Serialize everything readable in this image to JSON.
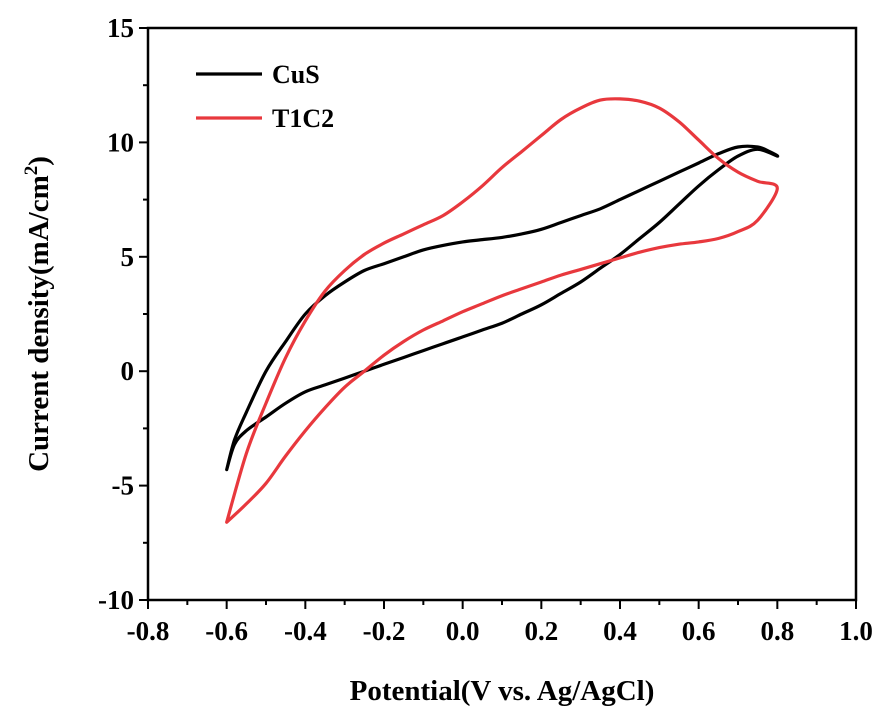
{
  "chart_data": {
    "type": "line",
    "xlabel": "Potential(V vs. Ag/AgCl)",
    "ylabel_main": "Current density(mA/cm",
    "ylabel_sup": "2",
    "ylabel_close": ")",
    "xlim": [
      -0.8,
      1.0
    ],
    "ylim": [
      -10,
      15
    ],
    "xticks": [
      -0.8,
      -0.6,
      -0.4,
      -0.2,
      0.0,
      0.2,
      0.4,
      0.6,
      0.8,
      1.0
    ],
    "xtick_labels": [
      "-0.8",
      "-0.6",
      "-0.4",
      "-0.2",
      "0.0",
      "0.2",
      "0.4",
      "0.6",
      "0.8",
      "1.0"
    ],
    "yticks": [
      -10,
      -5,
      0,
      5,
      10,
      15
    ],
    "ytick_labels": [
      "-10",
      "-5",
      "0",
      "5",
      "10",
      "15"
    ],
    "grid": false,
    "legend_position": "top-left",
    "series": [
      {
        "name": "CuS",
        "color": "#000000",
        "x": [
          -0.6,
          -0.58,
          -0.55,
          -0.5,
          -0.45,
          -0.4,
          -0.35,
          -0.3,
          -0.25,
          -0.2,
          -0.15,
          -0.1,
          -0.05,
          0.0,
          0.05,
          0.1,
          0.15,
          0.2,
          0.25,
          0.3,
          0.35,
          0.4,
          0.45,
          0.5,
          0.55,
          0.6,
          0.65,
          0.7,
          0.75,
          0.8,
          0.78,
          0.75,
          0.7,
          0.65,
          0.6,
          0.55,
          0.5,
          0.45,
          0.4,
          0.35,
          0.3,
          0.25,
          0.2,
          0.15,
          0.1,
          0.05,
          0.0,
          -0.05,
          -0.1,
          -0.15,
          -0.2,
          -0.25,
          -0.3,
          -0.35,
          -0.4,
          -0.45,
          -0.5,
          -0.55,
          -0.58,
          -0.6
        ],
        "y": [
          -4.3,
          -3.2,
          -2.6,
          -2.0,
          -1.4,
          -0.9,
          -0.6,
          -0.3,
          0.0,
          0.3,
          0.6,
          0.9,
          1.2,
          1.5,
          1.8,
          2.1,
          2.5,
          2.9,
          3.4,
          3.9,
          4.5,
          5.1,
          5.8,
          6.5,
          7.3,
          8.1,
          8.8,
          9.4,
          9.7,
          9.4,
          9.6,
          9.8,
          9.8,
          9.5,
          9.1,
          8.7,
          8.3,
          7.9,
          7.5,
          7.1,
          6.8,
          6.5,
          6.2,
          6.0,
          5.85,
          5.75,
          5.65,
          5.5,
          5.3,
          5.0,
          4.7,
          4.4,
          3.9,
          3.3,
          2.5,
          1.3,
          0.0,
          -1.8,
          -3.0,
          -4.3
        ]
      },
      {
        "name": "T1C2",
        "color": "#e8383d",
        "x": [
          -0.6,
          -0.55,
          -0.5,
          -0.45,
          -0.4,
          -0.35,
          -0.3,
          -0.25,
          -0.2,
          -0.15,
          -0.1,
          -0.05,
          0.0,
          0.05,
          0.1,
          0.15,
          0.2,
          0.25,
          0.3,
          0.35,
          0.4,
          0.45,
          0.5,
          0.55,
          0.6,
          0.65,
          0.7,
          0.75,
          0.8,
          0.75,
          0.7,
          0.65,
          0.6,
          0.55,
          0.5,
          0.45,
          0.4,
          0.35,
          0.3,
          0.25,
          0.2,
          0.15,
          0.1,
          0.05,
          0.0,
          -0.05,
          -0.1,
          -0.15,
          -0.2,
          -0.25,
          -0.3,
          -0.35,
          -0.4,
          -0.45,
          -0.5,
          -0.55,
          -0.6
        ],
        "y": [
          -6.6,
          -5.8,
          -4.9,
          -3.7,
          -2.6,
          -1.6,
          -0.7,
          0.0,
          0.7,
          1.3,
          1.8,
          2.2,
          2.6,
          2.95,
          3.3,
          3.6,
          3.9,
          4.2,
          4.45,
          4.7,
          4.95,
          5.2,
          5.4,
          5.55,
          5.65,
          5.8,
          6.1,
          6.6,
          8.0,
          8.3,
          8.7,
          9.3,
          10.1,
          10.9,
          11.5,
          11.8,
          11.9,
          11.85,
          11.5,
          11.0,
          10.3,
          9.6,
          8.9,
          8.1,
          7.4,
          6.8,
          6.4,
          6.0,
          5.6,
          5.1,
          4.4,
          3.5,
          2.2,
          0.6,
          -1.4,
          -3.6,
          -6.6
        ]
      }
    ]
  }
}
